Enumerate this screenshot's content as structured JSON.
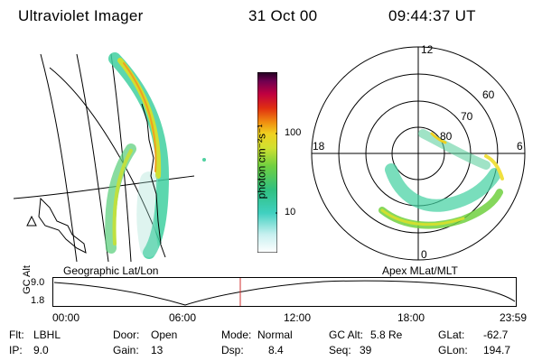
{
  "header": {
    "instrument": "Ultraviolet Imager",
    "date": "31 Oct 00",
    "time": "09:44:37 UT"
  },
  "panels": {
    "left_label": "Geographic Lat/Lon",
    "right_label": "Apex MLat/MLT",
    "polar": {
      "mlt_labels": {
        "top": "12",
        "left": "18",
        "right": "6",
        "bottom": "0"
      },
      "lat_labels": [
        "60",
        "70",
        "80"
      ]
    }
  },
  "colorbar": {
    "title": "photon cm⁻²s⁻¹",
    "ticks": [
      "100",
      "10"
    ],
    "colors": [
      "#ffffff",
      "#c8f0f0",
      "#40d0c0",
      "#30c080",
      "#70d040",
      "#d0e030",
      "#f0d020",
      "#f09010",
      "#e03010",
      "#c00040",
      "#700050",
      "#200020"
    ]
  },
  "timeline": {
    "axis_label": "GC Alt",
    "y_ticks": {
      "top": "9.0",
      "bottom": "1.8"
    },
    "time_ticks": [
      "00:00",
      "06:00",
      "12:00",
      "18:00",
      "23:59"
    ],
    "marker_color": "#d03030"
  },
  "info": {
    "flt_label": "Flt:",
    "flt_value": "LBHL",
    "ip_label": "IP:",
    "ip_value": "9.0",
    "door_label": "Door:",
    "door_value": "Open",
    "gain_label": "Gain:",
    "gain_value": "13",
    "mode_label": "Mode:",
    "mode_value": "Normal",
    "dsp_label": "Dsp:",
    "dsp_value": "8.4",
    "gcalt_label": "GC Alt:",
    "gcalt_value": "5.8 Re",
    "seq_label": "Seq:",
    "seq_value": "39",
    "glat_label": "GLat:",
    "glat_value": "-62.7",
    "glon_label": "GLon:",
    "glon_value": "194.7"
  }
}
